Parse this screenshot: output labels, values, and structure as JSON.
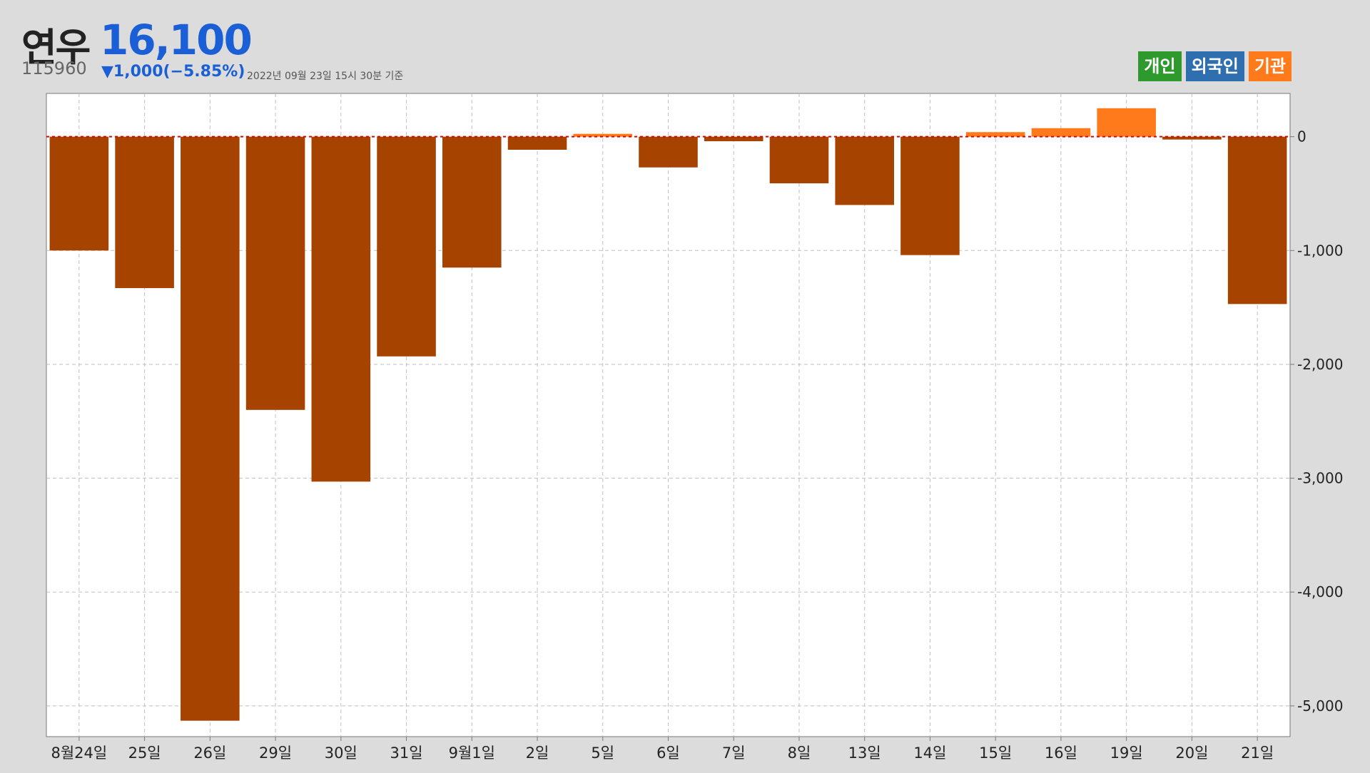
{
  "header": {
    "name": "연우",
    "price": "16,100",
    "code": "115960",
    "change": "▼1,000(−5.85%)",
    "date": "2022년 09월 23일 15시 30분 기준"
  },
  "legend": [
    {
      "label": "개인",
      "color": "#2e9a2e"
    },
    {
      "label": "외국인",
      "color": "#2f6fb0"
    },
    {
      "label": "기관",
      "color": "#ff7a1a"
    }
  ],
  "chart_data": {
    "type": "bar",
    "series": [
      {
        "name": "기관",
        "values": [
          -1000,
          -1330,
          -5130,
          -2400,
          -3030,
          -1930,
          -1150,
          -115,
          25,
          -270,
          -40,
          -410,
          -600,
          -1040,
          40,
          75,
          250,
          -25,
          -1470
        ]
      }
    ],
    "categories": [
      "8월24일",
      "25일",
      "26일",
      "29일",
      "30일",
      "31일",
      "9월1일",
      "2일",
      "5일",
      "6일",
      "7일",
      "8일",
      "13일",
      "14일",
      "15일",
      "16일",
      "19일",
      "20일",
      "21일"
    ],
    "ylim": [
      -5270,
      380
    ],
    "yticks": [
      0,
      -1000,
      -2000,
      -3000,
      -4000,
      -5000
    ],
    "ytick_labels": [
      "0",
      "-1,000",
      "-2,000",
      "-3,000",
      "-4,000",
      "-5,000"
    ],
    "colors": {
      "negative": "#a64300",
      "positive": "#ff7a1a",
      "zero_line": "#e00000",
      "grid": "#bfbfbf",
      "plot_bg": "#ffffff"
    },
    "grid": true,
    "legend_position": "top-right"
  }
}
